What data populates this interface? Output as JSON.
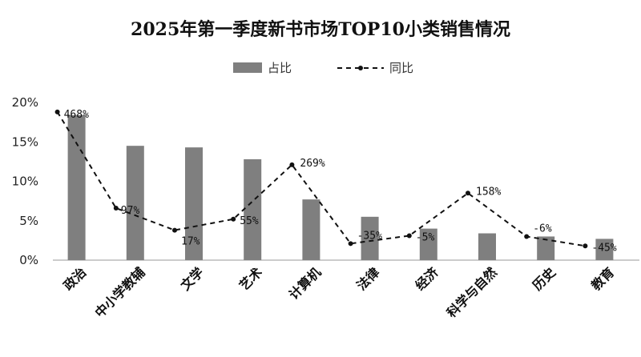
{
  "chart_data": {
    "type": "bar",
    "title": "2025年第一季度新书市场TOP10小类销售情况",
    "categories": [
      "政治",
      "中小学教辅",
      "文学",
      "艺术",
      "计算机",
      "法律",
      "经济",
      "科学与自然",
      "历史",
      "教育"
    ],
    "series": [
      {
        "name": "占比",
        "type": "bar",
        "values": [
          18.4,
          14.5,
          14.3,
          12.8,
          7.7,
          5.5,
          4.0,
          3.4,
          3.0,
          2.7
        ],
        "color": "#7f7f7f"
      },
      {
        "name": "同比",
        "type": "line",
        "style": "dashed",
        "values": [
          18.8,
          6.6,
          3.8,
          5.2,
          12.1,
          2.1,
          3.1,
          8.5,
          3.0,
          1.8
        ],
        "labels": [
          "468%",
          "97%",
          "17%",
          "55%",
          "269%",
          "-35%",
          "-5%",
          "158%",
          "-6%",
          "-45%"
        ],
        "color": "#111111"
      }
    ],
    "yticks": [
      "0%",
      "5%",
      "10%",
      "15%",
      "20%"
    ],
    "ylim": [
      0,
      20
    ],
    "grid": false,
    "legend": "top-center",
    "xlabel": "",
    "ylabel": ""
  }
}
